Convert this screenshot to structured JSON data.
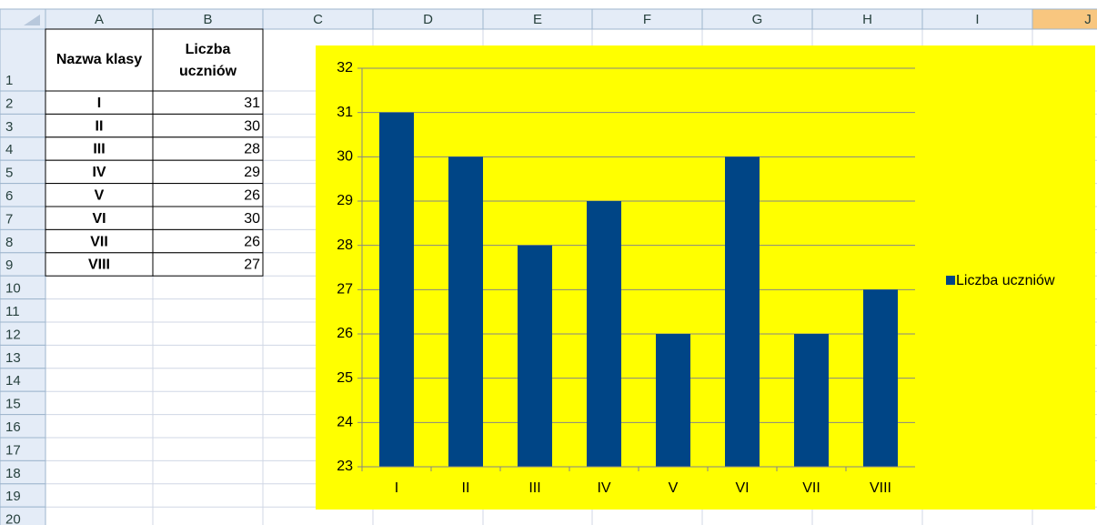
{
  "columns": [
    "A",
    "B",
    "C",
    "D",
    "E",
    "F",
    "G",
    "H",
    "I",
    "J"
  ],
  "rows": [
    1,
    2,
    3,
    4,
    5,
    6,
    7,
    8,
    9,
    10,
    11,
    12,
    13,
    14,
    15,
    16,
    17,
    18,
    19,
    20
  ],
  "table": {
    "header": [
      "Nazwa klasy",
      "Liczba uczniów"
    ],
    "rows": [
      [
        "I",
        31
      ],
      [
        "II",
        30
      ],
      [
        "III",
        28
      ],
      [
        "IV",
        29
      ],
      [
        "V",
        26
      ],
      [
        "VI",
        30
      ],
      [
        "VII",
        26
      ],
      [
        "VIII",
        27
      ]
    ]
  },
  "chart_data": {
    "type": "bar",
    "categories": [
      "I",
      "II",
      "III",
      "IV",
      "V",
      "VI",
      "VII",
      "VIII"
    ],
    "series": [
      {
        "name": "Liczba uczniów",
        "color": "#004586",
        "values": [
          31,
          30,
          28,
          29,
          26,
          30,
          26,
          27
        ]
      }
    ],
    "ylim": [
      23,
      32
    ],
    "yticks": [
      23,
      24,
      25,
      26,
      27,
      28,
      29,
      30,
      31,
      32
    ],
    "grid": true,
    "legend": "right",
    "background": "#ffff00"
  }
}
